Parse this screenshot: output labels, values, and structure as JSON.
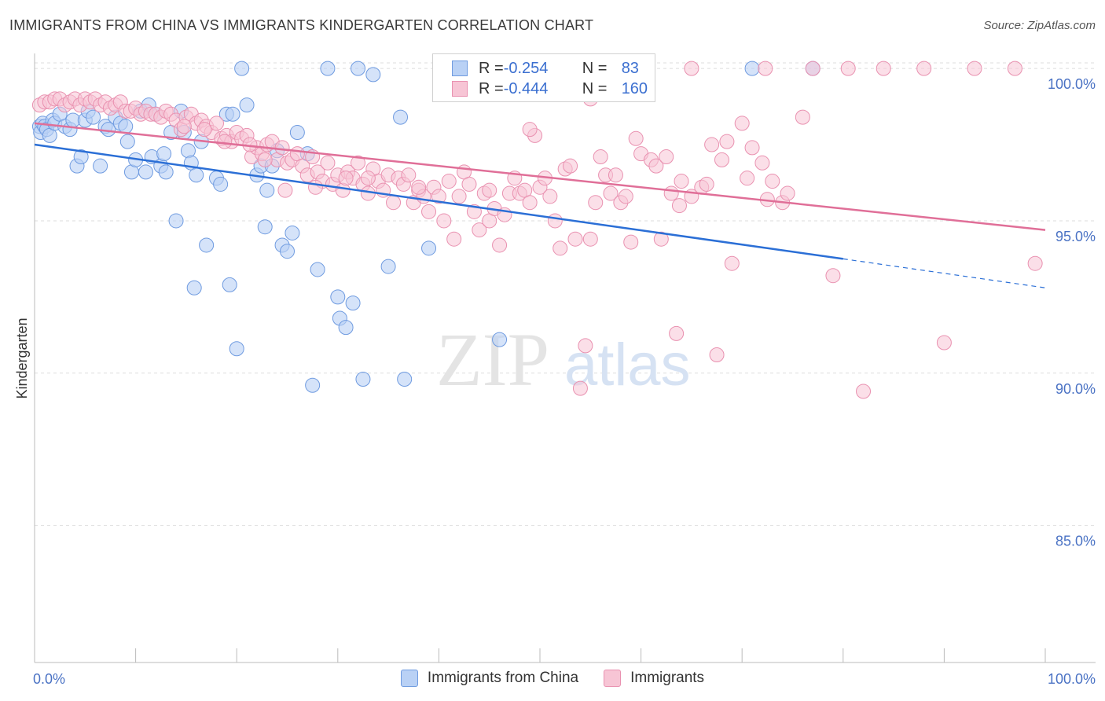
{
  "header": {
    "title": "IMMIGRANTS FROM CHINA VS IMMIGRANTS KINDERGARTEN CORRELATION CHART",
    "source": "Source: ZipAtlas.com"
  },
  "watermark": {
    "zip": "ZIP",
    "atlas": "atlas"
  },
  "legend_top": {
    "rows": [
      {
        "r_label": "R = ",
        "r_value": "-0.254",
        "n_label": "N = ",
        "n_value": "83"
      },
      {
        "r_label": "R = ",
        "r_value": "-0.444",
        "n_label": "N = ",
        "n_value": "160"
      }
    ]
  },
  "colors": {
    "china_fill": "#b9d1f5",
    "china_stroke": "#6f9be0",
    "china_line": "#2b6fd6",
    "imm_fill": "#f7c5d5",
    "imm_stroke": "#e991b0",
    "imm_line": "#e06f98",
    "grid": "#dddddd",
    "tick_text": "#4a72c4"
  },
  "chart_data": {
    "type": "scatter",
    "title": "IMMIGRANTS FROM CHINA VS IMMIGRANTS KINDERGARTEN CORRELATION CHART",
    "xlabel": "",
    "ylabel": "Kindergarten",
    "xlim": [
      0,
      100
    ],
    "ylim": [
      80.5,
      100.7
    ],
    "x_tick_labels": [
      "0.0%",
      "100.0%"
    ],
    "y_ticks": [
      100,
      95,
      90,
      85
    ],
    "y_tick_labels": [
      "100.0%",
      "95.0%",
      "90.0%",
      "85.0%"
    ],
    "grid": true,
    "legend_position": "bottom-center",
    "series": [
      {
        "name": "Immigrants from China",
        "r": -0.254,
        "n": 83,
        "trend": {
          "x0": 0,
          "y0": 97.5,
          "x1": 80,
          "y1": 93.75,
          "dash_to_x": 100,
          "dash_to_y": 92.8
        },
        "points": [
          [
            0.5,
            98.1
          ],
          [
            0.6,
            97.9
          ],
          [
            0.8,
            98.2
          ],
          [
            1.0,
            98.1
          ],
          [
            1.2,
            98.0
          ],
          [
            1.5,
            97.8
          ],
          [
            1.8,
            98.3
          ],
          [
            2.0,
            98.2
          ],
          [
            2.5,
            98.5
          ],
          [
            3.0,
            98.1
          ],
          [
            3.5,
            98.0
          ],
          [
            3.8,
            98.3
          ],
          [
            4.2,
            96.8
          ],
          [
            4.6,
            97.1
          ],
          [
            5.0,
            98.3
          ],
          [
            5.3,
            98.6
          ],
          [
            5.8,
            98.4
          ],
          [
            6.5,
            96.8
          ],
          [
            7.0,
            98.1
          ],
          [
            7.3,
            98.0
          ],
          [
            8.0,
            98.4
          ],
          [
            8.5,
            98.2
          ],
          [
            9.0,
            98.1
          ],
          [
            9.2,
            97.6
          ],
          [
            9.6,
            96.6
          ],
          [
            10.0,
            97.0
          ],
          [
            10.5,
            98.6
          ],
          [
            11.0,
            96.6
          ],
          [
            11.3,
            98.8
          ],
          [
            11.6,
            97.1
          ],
          [
            12.0,
            98.5
          ],
          [
            12.5,
            96.8
          ],
          [
            12.8,
            97.2
          ],
          [
            13.0,
            96.6
          ],
          [
            13.5,
            97.9
          ],
          [
            14.0,
            95.0
          ],
          [
            14.5,
            98.6
          ],
          [
            14.8,
            97.9
          ],
          [
            15.2,
            97.3
          ],
          [
            15.5,
            96.9
          ],
          [
            15.8,
            92.8
          ],
          [
            16.0,
            96.5
          ],
          [
            16.5,
            97.6
          ],
          [
            17.0,
            94.2
          ],
          [
            18.0,
            96.4
          ],
          [
            18.4,
            96.2
          ],
          [
            19.0,
            98.5
          ],
          [
            19.3,
            92.9
          ],
          [
            19.6,
            98.5
          ],
          [
            20.0,
            90.8
          ],
          [
            20.5,
            100.0
          ],
          [
            21.0,
            98.8
          ],
          [
            22.0,
            96.5
          ],
          [
            22.4,
            96.8
          ],
          [
            22.8,
            94.8
          ],
          [
            23.0,
            96.0
          ],
          [
            23.5,
            96.8
          ],
          [
            24.0,
            97.3
          ],
          [
            24.5,
            94.2
          ],
          [
            25.0,
            94.0
          ],
          [
            25.5,
            94.6
          ],
          [
            26.0,
            97.9
          ],
          [
            27.0,
            97.2
          ],
          [
            27.5,
            89.6
          ],
          [
            28.0,
            93.4
          ],
          [
            29.0,
            100.0
          ],
          [
            30.0,
            92.5
          ],
          [
            30.2,
            91.8
          ],
          [
            30.8,
            91.5
          ],
          [
            31.5,
            92.3
          ],
          [
            32.0,
            100.0
          ],
          [
            32.5,
            89.8
          ],
          [
            33.5,
            99.8
          ],
          [
            35.0,
            93.5
          ],
          [
            36.2,
            98.4
          ],
          [
            36.6,
            89.8
          ],
          [
            39.0,
            94.1
          ],
          [
            41.0,
            100.0
          ],
          [
            46.0,
            91.1
          ],
          [
            71.0,
            100.0
          ],
          [
            77.0,
            100.0
          ]
        ]
      },
      {
        "name": "Immigrants",
        "r": -0.444,
        "n": 160,
        "trend": {
          "x0": 0,
          "y0": 98.2,
          "x1": 100,
          "y1": 94.7
        },
        "points": [
          [
            0.5,
            98.8
          ],
          [
            1.0,
            98.9
          ],
          [
            1.5,
            98.9
          ],
          [
            2.0,
            99.0
          ],
          [
            2.5,
            99.0
          ],
          [
            3.0,
            98.8
          ],
          [
            3.5,
            98.9
          ],
          [
            4.0,
            99.0
          ],
          [
            4.5,
            98.8
          ],
          [
            5.0,
            99.0
          ],
          [
            5.5,
            98.9
          ],
          [
            6.0,
            99.0
          ],
          [
            6.5,
            98.8
          ],
          [
            7.0,
            98.9
          ],
          [
            7.5,
            98.7
          ],
          [
            8.0,
            98.8
          ],
          [
            8.5,
            98.9
          ],
          [
            9.0,
            98.6
          ],
          [
            9.5,
            98.6
          ],
          [
            10.0,
            98.7
          ],
          [
            10.5,
            98.5
          ],
          [
            11.0,
            98.6
          ],
          [
            11.5,
            98.5
          ],
          [
            12.0,
            98.5
          ],
          [
            12.5,
            98.4
          ],
          [
            13.0,
            98.6
          ],
          [
            13.5,
            98.5
          ],
          [
            14.0,
            98.3
          ],
          [
            14.5,
            98.0
          ],
          [
            15.0,
            98.4
          ],
          [
            15.5,
            98.5
          ],
          [
            16.0,
            98.2
          ],
          [
            16.5,
            98.3
          ],
          [
            17.0,
            98.1
          ],
          [
            17.5,
            97.9
          ],
          [
            18.0,
            98.2
          ],
          [
            18.5,
            97.7
          ],
          [
            19.0,
            97.8
          ],
          [
            19.5,
            97.6
          ],
          [
            20.0,
            97.9
          ],
          [
            20.5,
            97.7
          ],
          [
            21.0,
            97.8
          ],
          [
            21.5,
            97.1
          ],
          [
            22.0,
            97.4
          ],
          [
            22.5,
            97.2
          ],
          [
            23.0,
            97.5
          ],
          [
            23.5,
            97.6
          ],
          [
            24.0,
            97.0
          ],
          [
            24.5,
            97.4
          ],
          [
            25.0,
            96.9
          ],
          [
            25.5,
            97.0
          ],
          [
            26.0,
            97.2
          ],
          [
            26.5,
            96.8
          ],
          [
            27.0,
            96.5
          ],
          [
            27.5,
            97.1
          ],
          [
            28.0,
            96.6
          ],
          [
            28.5,
            96.3
          ],
          [
            29.0,
            96.9
          ],
          [
            29.5,
            96.2
          ],
          [
            30.0,
            96.5
          ],
          [
            30.5,
            96.0
          ],
          [
            31.0,
            96.6
          ],
          [
            31.5,
            96.4
          ],
          [
            32.0,
            96.9
          ],
          [
            32.5,
            96.2
          ],
          [
            33.0,
            95.9
          ],
          [
            33.5,
            96.7
          ],
          [
            34.0,
            96.3
          ],
          [
            34.5,
            96.0
          ],
          [
            35.0,
            96.5
          ],
          [
            35.5,
            95.6
          ],
          [
            36.0,
            96.4
          ],
          [
            36.5,
            96.2
          ],
          [
            37.0,
            96.5
          ],
          [
            37.5,
            95.6
          ],
          [
            38.0,
            96.0
          ],
          [
            38.5,
            95.8
          ],
          [
            39.0,
            95.3
          ],
          [
            39.5,
            96.1
          ],
          [
            40.0,
            95.8
          ],
          [
            40.5,
            95.0
          ],
          [
            41.0,
            96.3
          ],
          [
            41.5,
            94.4
          ],
          [
            42.0,
            95.8
          ],
          [
            42.5,
            96.6
          ],
          [
            43.0,
            96.2
          ],
          [
            43.5,
            95.3
          ],
          [
            44.0,
            94.7
          ],
          [
            44.5,
            95.9
          ],
          [
            45.0,
            95.0
          ],
          [
            45.5,
            95.4
          ],
          [
            46.0,
            94.2
          ],
          [
            46.5,
            95.2
          ],
          [
            47.0,
            95.9
          ],
          [
            47.5,
            96.4
          ],
          [
            48.0,
            95.9
          ],
          [
            48.5,
            96.0
          ],
          [
            49.0,
            95.6
          ],
          [
            49.5,
            97.8
          ],
          [
            50.0,
            96.1
          ],
          [
            50.5,
            96.4
          ],
          [
            51.0,
            95.8
          ],
          [
            51.5,
            95.0
          ],
          [
            52.0,
            94.1
          ],
          [
            52.5,
            96.7
          ],
          [
            53.0,
            96.8
          ],
          [
            53.5,
            94.4
          ],
          [
            54.0,
            89.5
          ],
          [
            54.5,
            90.9
          ],
          [
            55.0,
            94.4
          ],
          [
            55.5,
            95.6
          ],
          [
            56.0,
            97.1
          ],
          [
            56.5,
            96.5
          ],
          [
            57.0,
            95.9
          ],
          [
            58.0,
            95.6
          ],
          [
            59.0,
            94.3
          ],
          [
            59.5,
            97.7
          ],
          [
            60.0,
            97.2
          ],
          [
            61.0,
            97.0
          ],
          [
            61.5,
            96.8
          ],
          [
            62.0,
            94.4
          ],
          [
            62.5,
            97.1
          ],
          [
            63.0,
            95.9
          ],
          [
            63.5,
            91.3
          ],
          [
            64.0,
            96.3
          ],
          [
            65.0,
            95.8
          ],
          [
            66.0,
            96.1
          ],
          [
            67.0,
            97.5
          ],
          [
            67.5,
            90.6
          ],
          [
            68.0,
            97.0
          ],
          [
            68.5,
            97.6
          ],
          [
            69.0,
            93.6
          ],
          [
            70.0,
            98.2
          ],
          [
            70.5,
            96.4
          ],
          [
            71.0,
            97.4
          ],
          [
            72.0,
            96.9
          ],
          [
            72.5,
            95.7
          ],
          [
            73.0,
            96.3
          ],
          [
            74.0,
            95.6
          ],
          [
            74.5,
            95.9
          ],
          [
            76.0,
            98.4
          ],
          [
            77.0,
            100.0
          ],
          [
            79.0,
            93.2
          ],
          [
            82.0,
            89.4
          ],
          [
            84.0,
            100.0
          ],
          [
            88.0,
            100.0
          ],
          [
            90.0,
            91.0
          ],
          [
            93.0,
            100.0
          ],
          [
            97.0,
            100.0
          ],
          [
            99.0,
            93.6
          ],
          [
            65.0,
            100.0
          ],
          [
            60.0,
            100.0
          ],
          [
            80.5,
            100.0
          ],
          [
            55.0,
            99.0
          ],
          [
            49.0,
            98.0
          ],
          [
            38.0,
            96.1
          ],
          [
            33.0,
            96.4
          ],
          [
            45.0,
            96.0
          ],
          [
            57.5,
            96.5
          ],
          [
            66.5,
            96.2
          ],
          [
            72.3,
            100.0
          ],
          [
            58.5,
            95.8
          ],
          [
            63.8,
            95.5
          ],
          [
            30.8,
            96.4
          ],
          [
            27.8,
            96.1
          ],
          [
            24.8,
            96.0
          ],
          [
            22.8,
            97.0
          ],
          [
            21.3,
            97.5
          ],
          [
            18.8,
            97.6
          ],
          [
            16.8,
            98.0
          ],
          [
            14.8,
            98.1
          ]
        ]
      }
    ]
  },
  "bottom_legend": {
    "items": [
      {
        "label": "Immigrants from China"
      },
      {
        "label": "Immigrants"
      }
    ]
  }
}
